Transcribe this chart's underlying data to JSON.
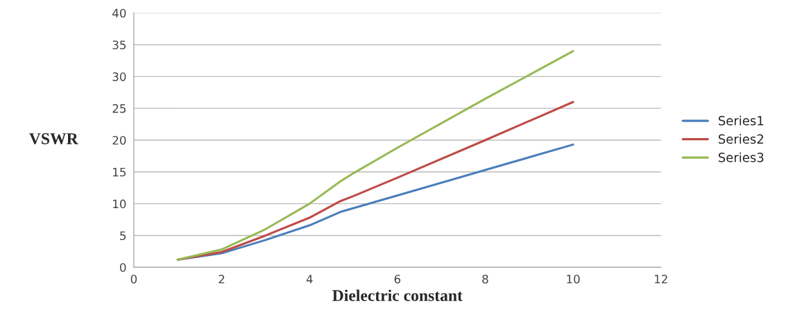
{
  "chart_data": {
    "type": "line",
    "xlabel": "Dielectric constant",
    "ylabel": "VSWR",
    "x": [
      1,
      2,
      3,
      4,
      4.7,
      5,
      6,
      8,
      10
    ],
    "series": [
      {
        "name": "Series1",
        "color": "#4a7ebb",
        "values": [
          1.2,
          2.2,
          4.3,
          6.6,
          8.7,
          9.3,
          11.3,
          15.3,
          19.3
        ]
      },
      {
        "name": "Series2",
        "color": "#be4b48",
        "values": [
          1.2,
          2.4,
          5.0,
          7.8,
          10.4,
          11.2,
          14.1,
          20.0,
          26.0
        ]
      },
      {
        "name": "Series3",
        "color": "#98b954",
        "values": [
          1.2,
          2.8,
          6.0,
          10.0,
          13.5,
          14.8,
          18.8,
          26.5,
          34.0
        ]
      }
    ],
    "xlim": [
      0,
      12
    ],
    "xticks": [
      0,
      2,
      4,
      6,
      8,
      10,
      12
    ],
    "ylim": [
      0,
      40
    ],
    "yticks": [
      0,
      5,
      10,
      15,
      20,
      25,
      30,
      35,
      40
    ],
    "grid": "y",
    "legend": "right",
    "marker": "none",
    "line_style": "solid"
  }
}
